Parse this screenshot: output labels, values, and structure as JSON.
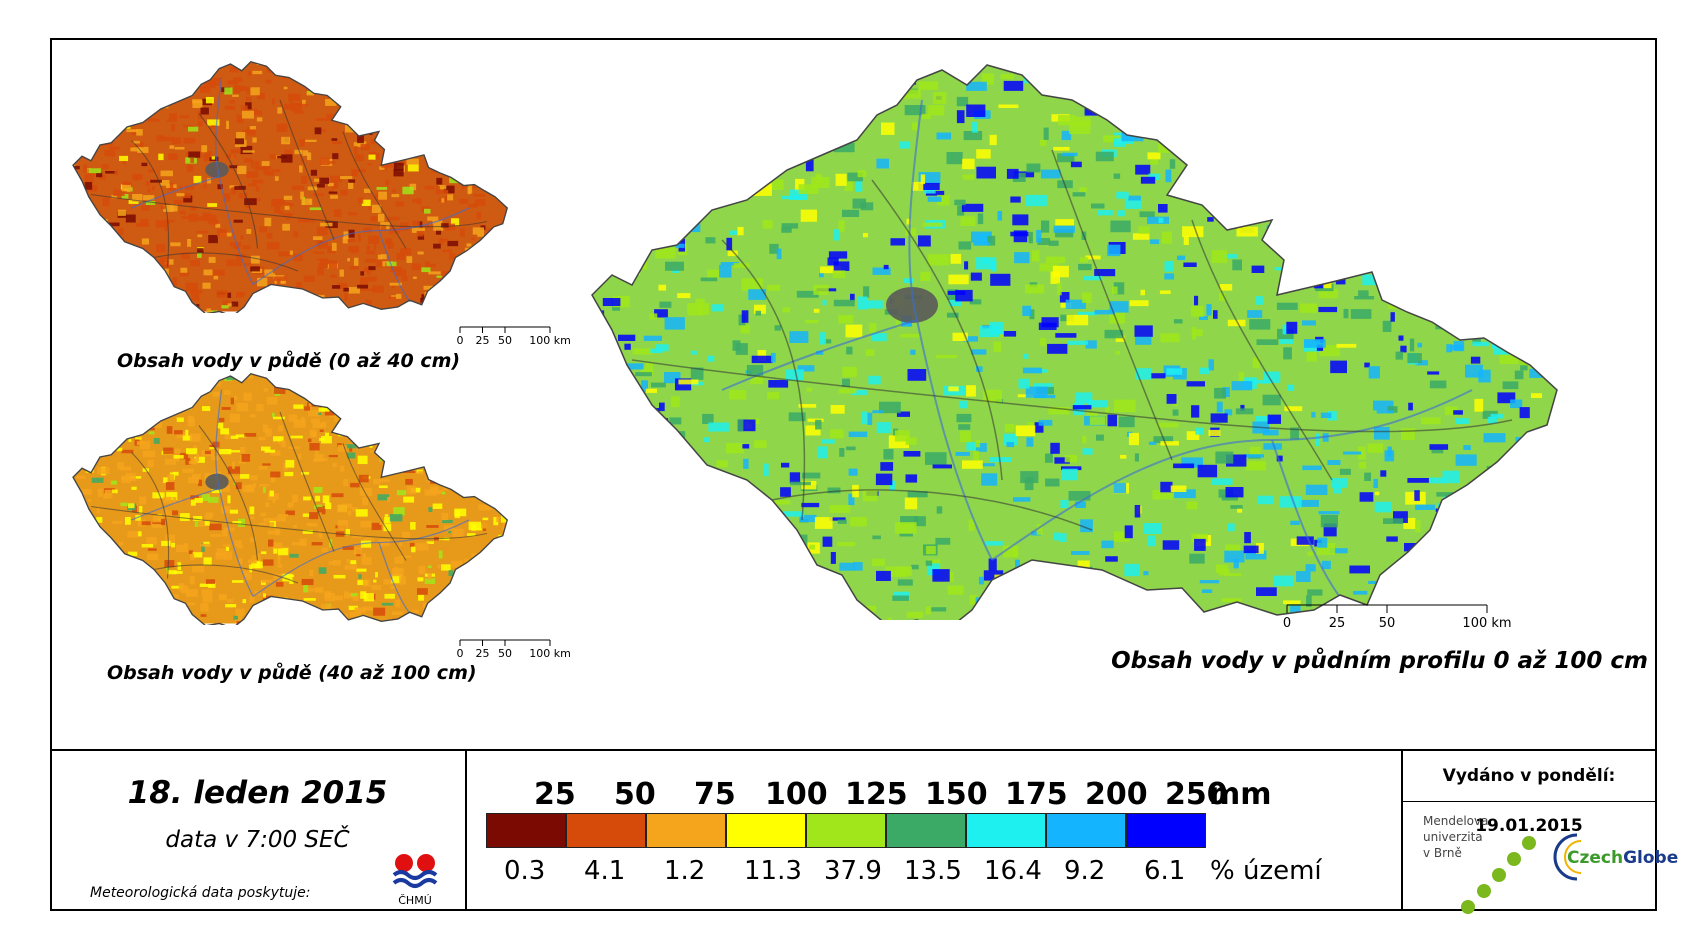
{
  "maps": [
    {
      "id": "topsoil",
      "title": "Obsah vody v půdě (0 až 40 cm)",
      "tone": "#cf5a12",
      "dominant_class": 1
    },
    {
      "id": "subsoil",
      "title": "Obsah vody v půdě (40 až 100 cm)",
      "tone": "#e79a1a",
      "dominant_class": 2
    },
    {
      "id": "profile",
      "title": "Obsah vody v půdním profilu 0 až 100 cm",
      "tone": "#8fd64b",
      "dominant_class": 4
    }
  ],
  "scalebar": {
    "small_labels": [
      "0",
      "25",
      "50",
      "100 km"
    ],
    "large_labels": [
      "0",
      "25",
      "50",
      "100 km"
    ]
  },
  "date": {
    "main": "18. leden 2015",
    "sub": "data v 7:00 SEČ",
    "provider": "Meteorologická data poskytuje:",
    "chmu_label": "ČHMÚ"
  },
  "legend": {
    "unit": "mm",
    "area_unit": "% území",
    "classes": [
      {
        "color": "#7a0a02",
        "pct": "0.3"
      },
      {
        "color": "#d64b0a",
        "pct": "4.1"
      },
      {
        "color": "#f5a51c",
        "pct": "1.2"
      },
      {
        "color": "#ffff00",
        "pct": "11.3"
      },
      {
        "color": "#a0e61a",
        "pct": "37.9"
      },
      {
        "color": "#3aaa66",
        "pct": "13.5"
      },
      {
        "color": "#1ef0f0",
        "pct": "16.4"
      },
      {
        "color": "#14b4ff",
        "pct": "9.2"
      },
      {
        "color": "#0000ff",
        "pct": "6.1"
      }
    ],
    "thresholds": [
      "25",
      "50",
      "75",
      "100",
      "125",
      "150",
      "175",
      "200",
      "250"
    ]
  },
  "issued": "Vydáno v pondělí: 19.01.2015",
  "mendel": [
    "Mendelova",
    "univerzita",
    "v Brně"
  ],
  "czechglobe": {
    "part1": "Czech",
    "part2": "Globe",
    "color1": "#3a9a2a",
    "color2": "#1a3a8a"
  }
}
